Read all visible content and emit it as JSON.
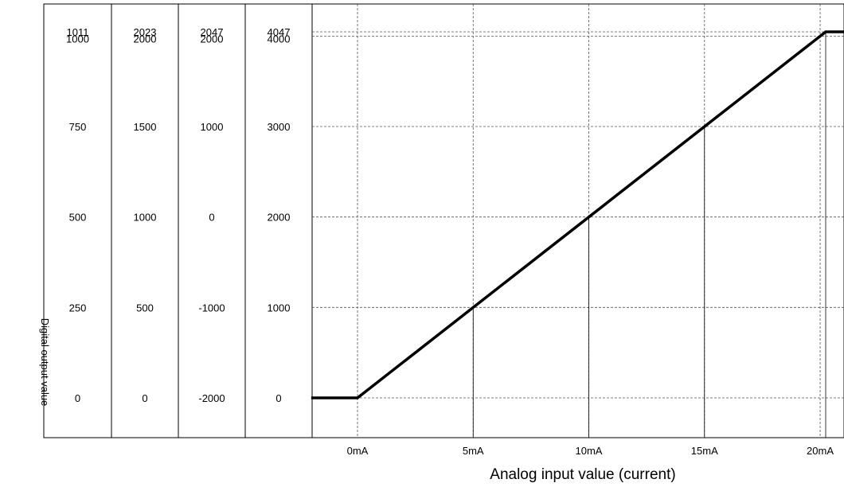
{
  "chart_data": {
    "type": "line",
    "xlabel": "Analog input value (current)",
    "ylabel": "Digital output value",
    "x_unit": "mA",
    "x_ticks": [
      0,
      5,
      10,
      15,
      20
    ],
    "x_tick_labels": [
      "0mA",
      "5mA",
      "10mA",
      "15mA",
      "20mA"
    ],
    "xlim": [
      -2,
      22
    ],
    "ylim": [
      -400,
      4450
    ],
    "y_grid": [
      0,
      1000,
      2000,
      3000,
      4000,
      4047
    ],
    "scale_columns": [
      {
        "labels": [
          "1011",
          "1000",
          "750",
          "500",
          "250",
          "0"
        ]
      },
      {
        "labels": [
          "2023",
          "2000",
          "1500",
          "1000",
          "500",
          "0"
        ]
      },
      {
        "labels": [
          "2047",
          "2000",
          "1000",
          "0",
          "-1000",
          "-2000"
        ]
      },
      {
        "labels": [
          "4047",
          "4000",
          "3000",
          "2000",
          "1000",
          "0"
        ]
      }
    ],
    "series": [
      {
        "x": [
          -2,
          0,
          20.24,
          22
        ],
        "y": [
          0,
          0,
          4047,
          4047
        ]
      }
    ],
    "reference_points": [
      {
        "x": 5,
        "y": 1000
      },
      {
        "x": 10,
        "y": 2000
      },
      {
        "x": 15,
        "y": 3000
      },
      {
        "x": 20.24,
        "y": 4047
      }
    ],
    "grid": true
  }
}
